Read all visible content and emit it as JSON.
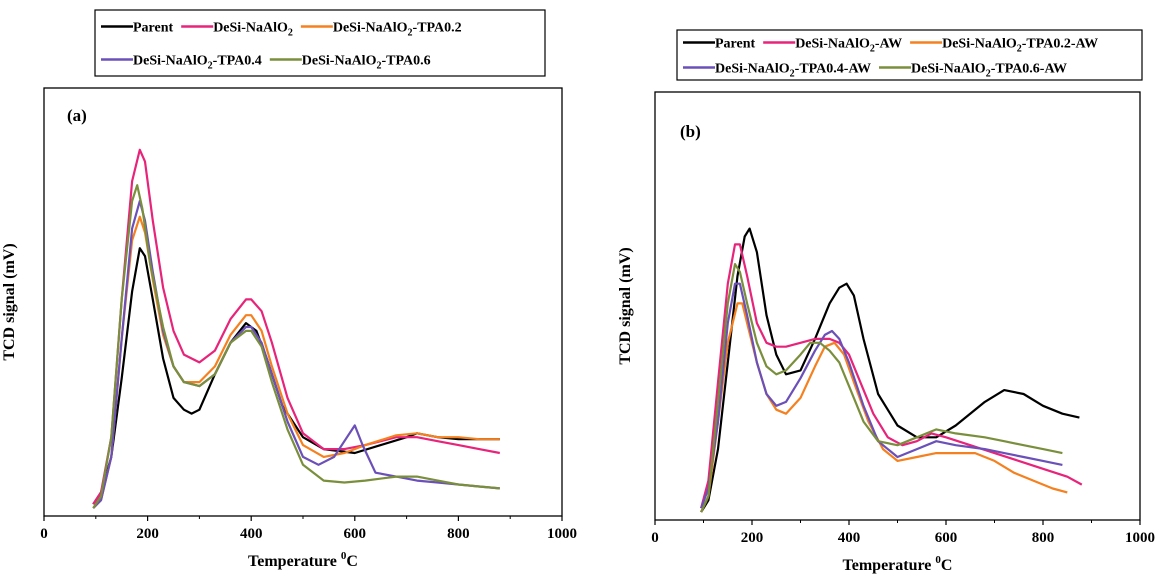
{
  "chart_data": [
    {
      "type": "line",
      "panel_label": "(a)",
      "xlabel": "Temperature",
      "xlabel_sup": "0",
      "xlabel_unit": "C",
      "ylabel": "TCD signal (mV)",
      "xlim": [
        0,
        1000
      ],
      "ylim": [
        0,
        100
      ],
      "xticks": [
        0,
        200,
        400,
        600,
        800,
        1000
      ],
      "yticks_shown": false,
      "legend_position": "top (outside plot)",
      "series": [
        {
          "name": "Parent",
          "color": "#000000",
          "x": [
            95,
            110,
            130,
            150,
            170,
            185,
            195,
            210,
            230,
            250,
            270,
            285,
            300,
            330,
            360,
            390,
            410,
            430,
            460,
            500,
            540,
            600,
            650,
            700,
            720,
            760,
            800,
            840,
            880
          ],
          "y": [
            3,
            6,
            15,
            35,
            57,
            68,
            66,
            55,
            40,
            30,
            27,
            26,
            27,
            36,
            44,
            49,
            47,
            40,
            28,
            20,
            17,
            16,
            18,
            20,
            21,
            20,
            19.5,
            19.5,
            19.5
          ]
        },
        {
          "name": "DeSi-NaAlO",
          "name_sub": "2",
          "name_tail": "",
          "color": "#e8237a",
          "x": [
            95,
            110,
            130,
            150,
            170,
            185,
            195,
            210,
            230,
            250,
            270,
            300,
            330,
            360,
            390,
            400,
            420,
            440,
            470,
            500,
            540,
            580,
            620,
            680,
            720,
            760,
            800,
            840,
            880
          ],
          "y": [
            3,
            6,
            20,
            55,
            85,
            93,
            90,
            75,
            58,
            47,
            41,
            39,
            42,
            50,
            55,
            55,
            52,
            44,
            30,
            21,
            17,
            17,
            18,
            20,
            20,
            19,
            18,
            17,
            16
          ]
        },
        {
          "name": "DeSi-NaAlO",
          "name_sub": "2",
          "name_tail": "-TPA0.2",
          "color": "#f5801f",
          "x": [
            95,
            110,
            130,
            150,
            170,
            185,
            195,
            210,
            230,
            250,
            270,
            300,
            330,
            360,
            390,
            400,
            420,
            440,
            470,
            500,
            540,
            580,
            620,
            680,
            720,
            760,
            800,
            840,
            880
          ],
          "y": [
            2,
            4,
            15,
            45,
            70,
            76,
            72,
            60,
            46,
            38,
            34,
            34,
            38,
            46,
            51,
            51,
            47,
            38,
            26,
            18,
            15,
            16,
            18,
            20.5,
            21,
            20,
            20,
            19.5,
            19.5
          ]
        },
        {
          "name": "DeSi-NaAlO",
          "name_sub": "2",
          "name_tail": "-TPA0.4",
          "color": "#6a50b8",
          "x": [
            95,
            110,
            130,
            150,
            170,
            185,
            195,
            210,
            230,
            250,
            270,
            300,
            330,
            360,
            390,
            400,
            420,
            440,
            470,
            500,
            530,
            560,
            585,
            600,
            615,
            640,
            680,
            720,
            760,
            800,
            840,
            880
          ],
          "y": [
            2,
            4,
            15,
            45,
            73,
            80,
            75,
            62,
            47,
            38,
            34,
            33,
            36,
            44,
            48,
            48,
            44,
            36,
            24,
            15,
            13,
            15,
            20,
            23,
            18,
            11,
            10,
            9,
            8.5,
            8,
            7.5,
            7
          ]
        },
        {
          "name": "DeSi-NaAlO",
          "name_sub": "2",
          "name_tail": "-TPA0.6",
          "color": "#7a8f3c",
          "x": [
            95,
            110,
            130,
            150,
            170,
            180,
            190,
            205,
            230,
            250,
            270,
            300,
            330,
            360,
            390,
            400,
            420,
            440,
            470,
            500,
            540,
            580,
            620,
            680,
            720,
            760,
            800,
            840,
            880
          ],
          "y": [
            2,
            5,
            20,
            55,
            80,
            84,
            78,
            64,
            48,
            38,
            34,
            33,
            36,
            44,
            47,
            47,
            43,
            34,
            22,
            13,
            9,
            8.5,
            9,
            10,
            10,
            9,
            8,
            7.5,
            7
          ]
        }
      ]
    },
    {
      "type": "line",
      "panel_label": "(b)",
      "xlabel": "Temperature",
      "xlabel_sup": "0",
      "xlabel_unit": "C",
      "ylabel": "TCD signal (mV)",
      "xlim": [
        0,
        1000
      ],
      "ylim": [
        0,
        100
      ],
      "xticks": [
        0,
        200,
        400,
        600,
        800,
        1000
      ],
      "yticks_shown": false,
      "legend_position": "top (outside plot)",
      "series": [
        {
          "name": "Parent",
          "color": "#000000",
          "x": [
            95,
            110,
            130,
            150,
            170,
            185,
            195,
            210,
            230,
            250,
            270,
            300,
            330,
            360,
            380,
            395,
            410,
            430,
            460,
            500,
            540,
            580,
            620,
            680,
            720,
            760,
            800,
            840,
            875
          ],
          "y": [
            2,
            5,
            18,
            40,
            62,
            72,
            74,
            68,
            52,
            42,
            37,
            38,
            46,
            55,
            59,
            60,
            57,
            46,
            32,
            24,
            21,
            21,
            24,
            30,
            33,
            32,
            29,
            27,
            26
          ]
        },
        {
          "name": "DeSi-NaAlO",
          "name_sub": "2",
          "name_tail": "-AW",
          "color": "#e8237a",
          "x": [
            95,
            110,
            130,
            150,
            165,
            175,
            190,
            210,
            230,
            250,
            270,
            300,
            330,
            360,
            380,
            400,
            420,
            450,
            480,
            510,
            540,
            570,
            600,
            650,
            700,
            750,
            800,
            850,
            880
          ],
          "y": [
            3,
            10,
            35,
            60,
            70,
            70,
            62,
            50,
            45,
            44,
            44,
            45,
            46,
            46,
            45,
            42,
            36,
            27,
            21,
            19,
            20,
            22,
            21,
            19,
            17,
            15,
            13,
            11,
            9
          ]
        },
        {
          "name": "DeSi-NaAlO",
          "name_sub": "2",
          "name_tail": "-TPA0.2-AW",
          "color": "#f5801f",
          "x": [
            95,
            110,
            130,
            150,
            170,
            180,
            190,
            210,
            230,
            250,
            270,
            300,
            330,
            350,
            370,
            390,
            410,
            440,
            470,
            500,
            540,
            580,
            620,
            660,
            700,
            740,
            780,
            820,
            850
          ],
          "y": [
            2,
            6,
            25,
            45,
            55,
            55,
            50,
            40,
            32,
            28,
            27,
            31,
            39,
            44,
            45,
            42,
            35,
            25,
            18,
            15,
            16,
            17,
            17,
            17,
            15,
            12,
            10,
            8,
            7
          ]
        },
        {
          "name": "DeSi-NaAlO",
          "name_sub": "2",
          "name_tail": "-TPA0.4-AW",
          "color": "#6a50b8",
          "x": [
            95,
            110,
            130,
            150,
            165,
            175,
            190,
            210,
            230,
            250,
            270,
            300,
            330,
            350,
            365,
            380,
            400,
            430,
            460,
            500,
            540,
            580,
            620,
            680,
            720,
            760,
            800,
            840
          ],
          "y": [
            3,
            8,
            25,
            50,
            60,
            60,
            52,
            40,
            32,
            29,
            30,
            36,
            43,
            47,
            48,
            46,
            40,
            29,
            20,
            16,
            18,
            20,
            19,
            18,
            17,
            16,
            15,
            14
          ]
        },
        {
          "name": "DeSi-NaAlO",
          "name_sub": "2",
          "name_tail": "-TPA0.6-AW",
          "color": "#7a8f3c",
          "x": [
            95,
            110,
            130,
            150,
            165,
            175,
            190,
            210,
            230,
            250,
            270,
            300,
            320,
            340,
            360,
            380,
            400,
            430,
            460,
            500,
            540,
            580,
            620,
            680,
            720,
            760,
            800,
            840
          ],
          "y": [
            2,
            6,
            30,
            55,
            65,
            63,
            55,
            45,
            39,
            37,
            38,
            42,
            45,
            45,
            43,
            40,
            34,
            25,
            20,
            19,
            21,
            23,
            22,
            21,
            20,
            19,
            18,
            17
          ]
        }
      ]
    }
  ]
}
